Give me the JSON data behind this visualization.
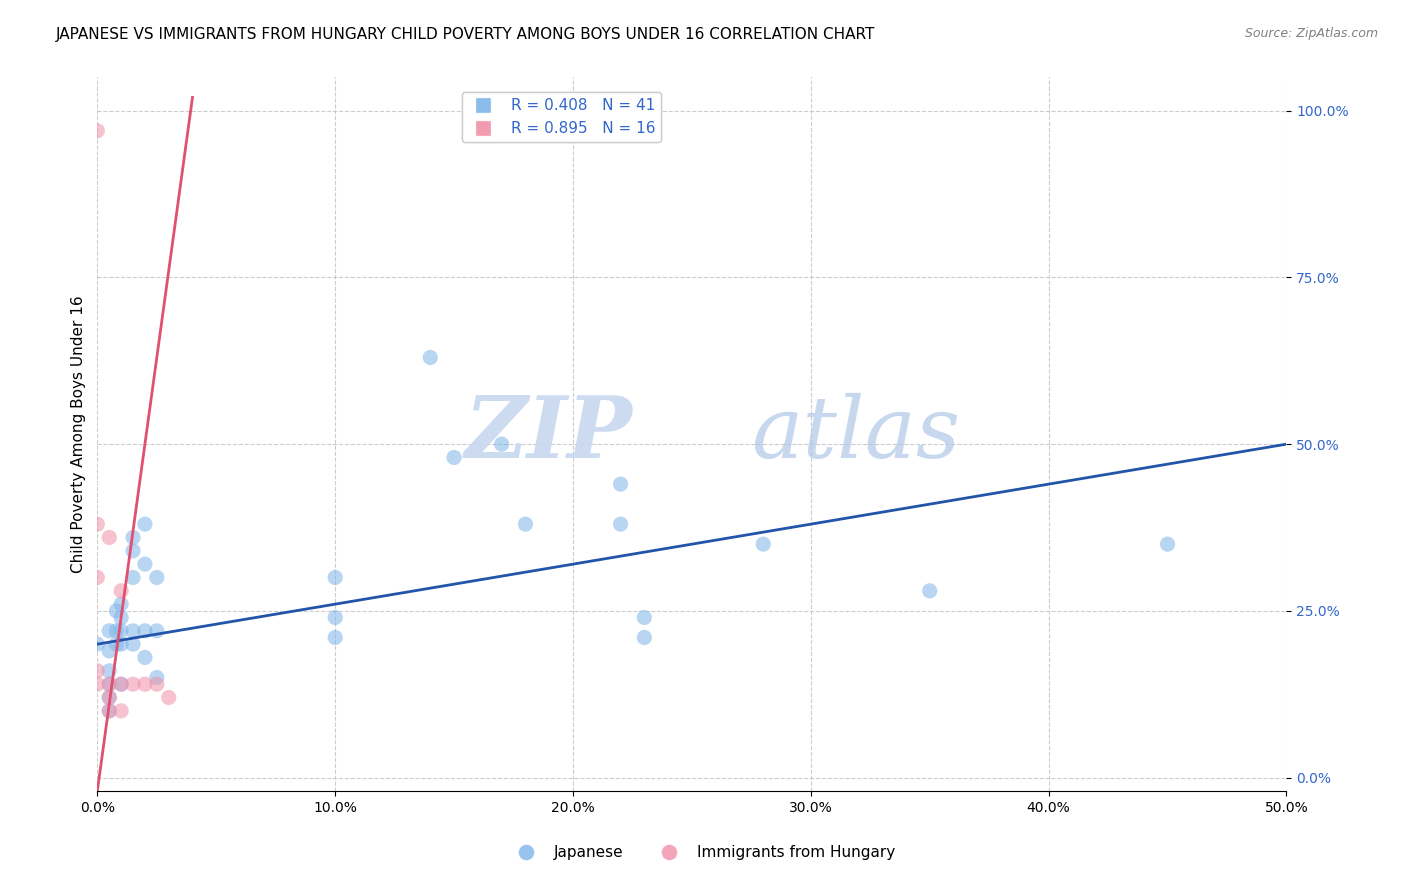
{
  "title": "JAPANESE VS IMMIGRANTS FROM HUNGARY CHILD POVERTY AMONG BOYS UNDER 16 CORRELATION CHART",
  "source": "Source: ZipAtlas.com",
  "ylabel": "Child Poverty Among Boys Under 16",
  "xlim": [
    0.0,
    0.5
  ],
  "ylim": [
    -0.02,
    1.05
  ],
  "watermark_zip": "ZIP",
  "watermark_atlas": "atlas",
  "japanese_scatter": [
    [
      0.0,
      0.2
    ],
    [
      0.005,
      0.22
    ],
    [
      0.005,
      0.19
    ],
    [
      0.005,
      0.16
    ],
    [
      0.005,
      0.14
    ],
    [
      0.005,
      0.12
    ],
    [
      0.005,
      0.1
    ],
    [
      0.008,
      0.25
    ],
    [
      0.008,
      0.22
    ],
    [
      0.008,
      0.2
    ],
    [
      0.01,
      0.26
    ],
    [
      0.01,
      0.24
    ],
    [
      0.01,
      0.22
    ],
    [
      0.01,
      0.2
    ],
    [
      0.01,
      0.14
    ],
    [
      0.015,
      0.36
    ],
    [
      0.015,
      0.34
    ],
    [
      0.015,
      0.3
    ],
    [
      0.015,
      0.22
    ],
    [
      0.015,
      0.2
    ],
    [
      0.02,
      0.38
    ],
    [
      0.02,
      0.32
    ],
    [
      0.02,
      0.22
    ],
    [
      0.02,
      0.18
    ],
    [
      0.025,
      0.3
    ],
    [
      0.025,
      0.22
    ],
    [
      0.025,
      0.15
    ],
    [
      0.1,
      0.3
    ],
    [
      0.1,
      0.24
    ],
    [
      0.1,
      0.21
    ],
    [
      0.14,
      0.63
    ],
    [
      0.15,
      0.48
    ],
    [
      0.17,
      0.5
    ],
    [
      0.18,
      0.38
    ],
    [
      0.22,
      0.44
    ],
    [
      0.22,
      0.38
    ],
    [
      0.23,
      0.24
    ],
    [
      0.23,
      0.21
    ],
    [
      0.28,
      0.35
    ],
    [
      0.35,
      0.28
    ],
    [
      0.45,
      0.35
    ]
  ],
  "hungary_scatter": [
    [
      0.0,
      0.97
    ],
    [
      0.0,
      0.38
    ],
    [
      0.0,
      0.3
    ],
    [
      0.0,
      0.16
    ],
    [
      0.0,
      0.14
    ],
    [
      0.005,
      0.36
    ],
    [
      0.005,
      0.14
    ],
    [
      0.005,
      0.12
    ],
    [
      0.005,
      0.1
    ],
    [
      0.01,
      0.28
    ],
    [
      0.01,
      0.14
    ],
    [
      0.01,
      0.1
    ],
    [
      0.015,
      0.14
    ],
    [
      0.02,
      0.14
    ],
    [
      0.025,
      0.14
    ],
    [
      0.03,
      0.12
    ]
  ],
  "blue_line_x": [
    0.0,
    0.5
  ],
  "blue_line_y": [
    0.2,
    0.5
  ],
  "pink_line_x": [
    0.0,
    0.04
  ],
  "pink_line_y": [
    -0.02,
    1.02
  ],
  "scatter_alpha": 0.55,
  "scatter_size": 120,
  "blue_color": "#7EB5E8",
  "pink_color": "#F090A8",
  "blue_line_color": "#2255AA",
  "pink_line_color": "#E05070",
  "grid_color": "#CCCCCC",
  "title_fontsize": 11,
  "axis_label_fontsize": 11,
  "tick_fontsize": 10,
  "legend_top_label1": "R = 0.408   N = 41",
  "legend_top_label2": "R = 0.895   N = 16",
  "legend_bot_label1": "Japanese",
  "legend_bot_label2": "Immigrants from Hungary"
}
